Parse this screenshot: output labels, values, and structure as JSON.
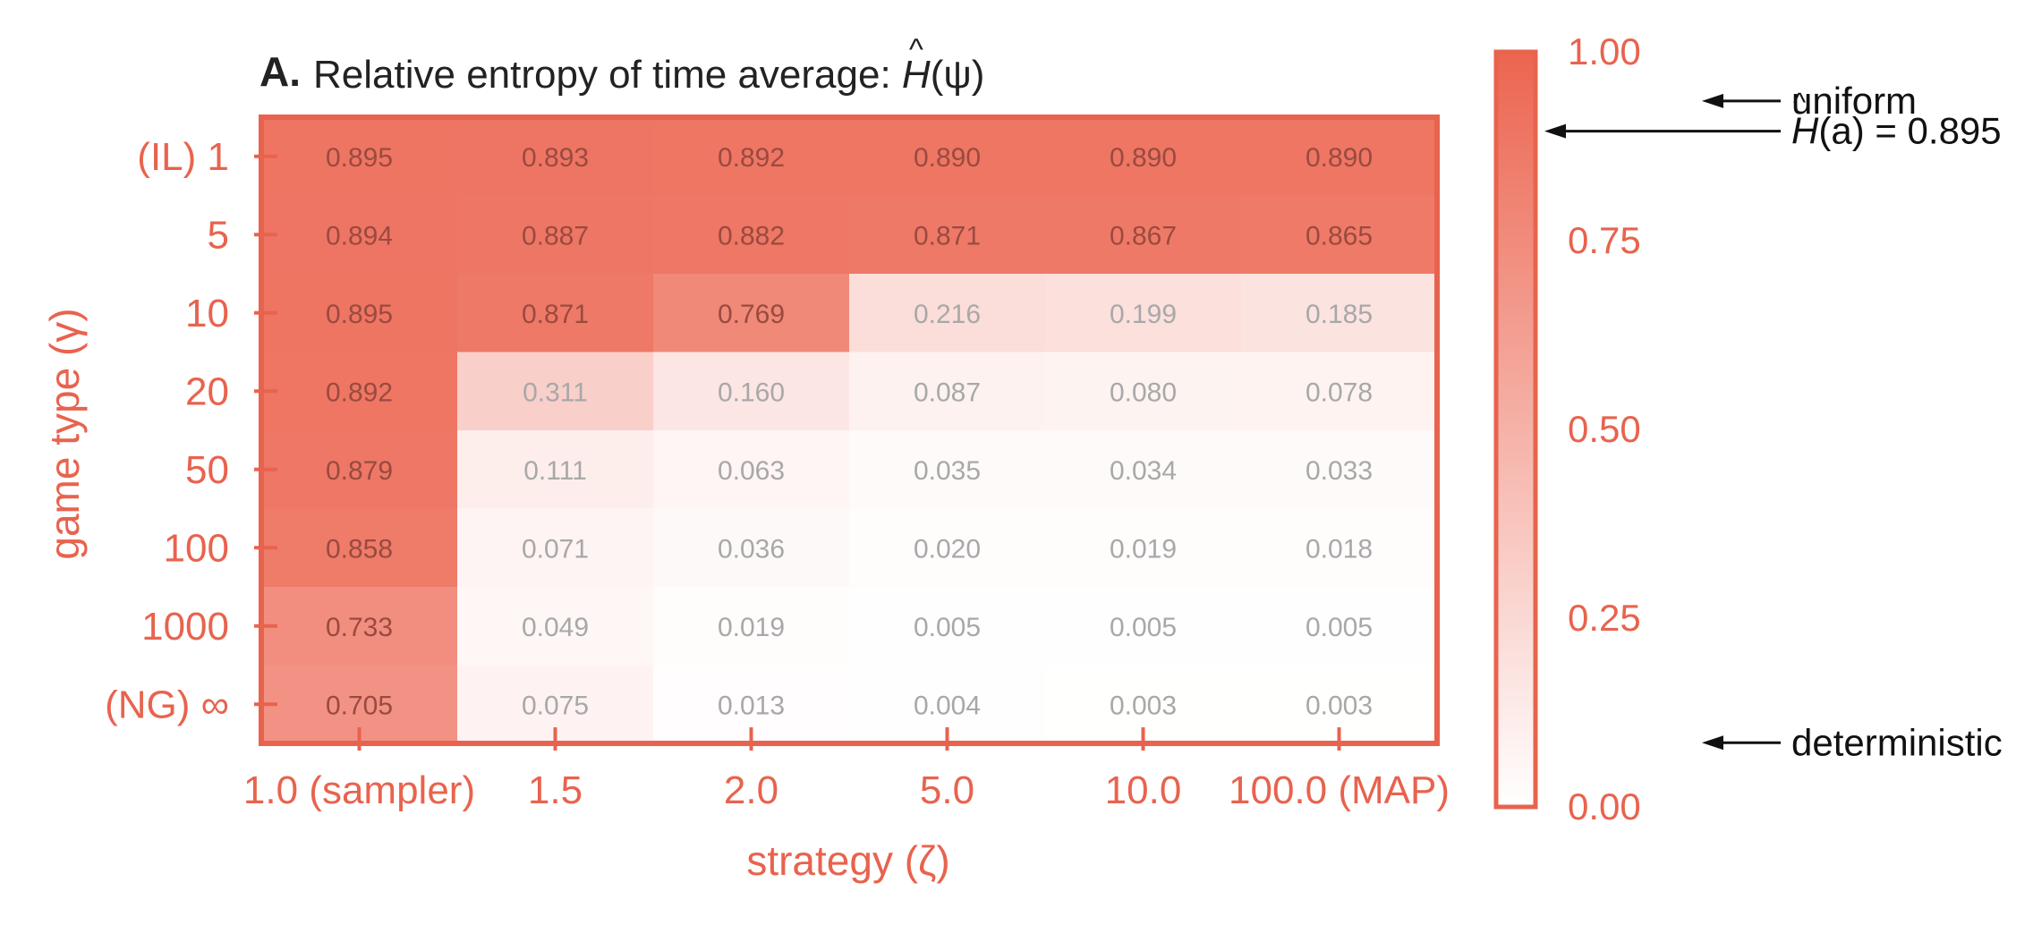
{
  "chart_data": {
    "type": "heatmap",
    "panel_label": "A.",
    "title": "Relative entropy of time average: Ĥ(ψ)",
    "title_prefix": "Relative entropy of time average: ",
    "title_symbol": "H",
    "title_arg": "(ψ)",
    "xlabel": "strategy (ζ)",
    "ylabel": "game type (γ)",
    "x_categories": [
      "1.0 (sampler)",
      "1.5",
      "2.0",
      "5.0",
      "10.0",
      "100.0 (MAP)"
    ],
    "y_categories": [
      "(IL) 1",
      "5",
      "10",
      "20",
      "50",
      "100",
      "1000",
      "(NG) ∞"
    ],
    "values": [
      [
        0.895,
        0.893,
        0.892,
        0.89,
        0.89,
        0.89
      ],
      [
        0.894,
        0.887,
        0.882,
        0.871,
        0.867,
        0.865
      ],
      [
        0.895,
        0.871,
        0.769,
        0.216,
        0.199,
        0.185
      ],
      [
        0.892,
        0.311,
        0.16,
        0.087,
        0.08,
        0.078
      ],
      [
        0.879,
        0.111,
        0.063,
        0.035,
        0.034,
        0.033
      ],
      [
        0.858,
        0.071,
        0.036,
        0.02,
        0.019,
        0.018
      ],
      [
        0.733,
        0.049,
        0.019,
        0.005,
        0.005,
        0.005
      ],
      [
        0.705,
        0.075,
        0.013,
        0.004,
        0.003,
        0.003
      ]
    ],
    "cell_labels": [
      [
        "0.895",
        "0.893",
        "0.892",
        "0.890",
        "0.890",
        "0.890"
      ],
      [
        "0.894",
        "0.887",
        "0.882",
        "0.871",
        "0.867",
        "0.865"
      ],
      [
        "0.895",
        "0.871",
        "0.769",
        "0.216",
        "0.199",
        "0.185"
      ],
      [
        "0.892",
        "0.311",
        "0.160",
        "0.087",
        "0.080",
        "0.078"
      ],
      [
        "0.879",
        "0.111",
        "0.063",
        "0.035",
        "0.034",
        "0.033"
      ],
      [
        "0.858",
        "0.071",
        "0.036",
        "0.020",
        "0.019",
        "0.018"
      ],
      [
        "0.733",
        "0.049",
        "0.019",
        "0.005",
        "0.005",
        "0.005"
      ],
      [
        "0.705",
        "0.075",
        "0.013",
        "0.004",
        "0.003",
        "0.003"
      ]
    ],
    "colorbar": {
      "range": [
        0.0,
        1.0
      ],
      "ticks": [
        0.0,
        0.25,
        0.5,
        0.75,
        1.0
      ],
      "tick_labels": [
        "0.00",
        "0.25",
        "0.50",
        "0.75",
        "1.00"
      ]
    },
    "annotations": [
      {
        "id": "uniform",
        "text": "uniform",
        "value": 0.935
      },
      {
        "id": "h-a",
        "text_prefix": "",
        "symbol": "H",
        "arg": "(a)",
        "suffix": " = 0.895",
        "value": 0.895
      },
      {
        "id": "deterministic",
        "text": "deterministic",
        "value": 0.085
      }
    ],
    "colors": {
      "max": "#ec6550",
      "min": "#ffffff",
      "accent": "#e8634e",
      "cell_text_dark": "#9a4a40",
      "cell_text_light": "#a8a8a8",
      "title": "#222222",
      "arrow": "#111111"
    }
  }
}
